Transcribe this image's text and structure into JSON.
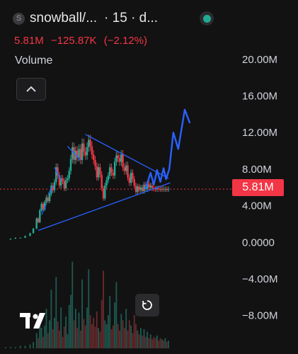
{
  "header": {
    "symbol_icon": "S",
    "symbol": "snowball/...",
    "interval": "· 15 · d...",
    "status_color": "#22ab94"
  },
  "legend": {
    "last_value": "5.81M",
    "change": "−125.87K",
    "change_pct": "(−2.12%)",
    "change_color": "#f23645"
  },
  "volume_label": "Volume",
  "icons": {
    "collapse": "chevron-up-icon",
    "reset": "reset-icon",
    "logo": "tradingview-logo-icon",
    "status": "status-dot-icon"
  },
  "chart_data": {
    "type": "line",
    "title": "",
    "xlabel": "",
    "ylabel": "",
    "ylim": [
      -9500000,
      22000000
    ],
    "y_ticks": [
      20000000,
      16000000,
      12000000,
      8000000,
      4000000,
      0,
      -4000000,
      -8000000
    ],
    "y_tick_labels": [
      "20.00M",
      "16.00M",
      "12.00M",
      "8.00M",
      "4.00M",
      "0.0000",
      "−4.00M",
      "−8.00M"
    ],
    "last_price": 5810000,
    "last_price_label": "5.81M",
    "colors": {
      "bull": "#22ab94",
      "bear": "#f23645",
      "drawing": "#2962ff",
      "price_line": "#f23645",
      "volume_bull": "#1f5a50",
      "volume_bear": "#6b2a2d"
    },
    "series": [
      {
        "x": [
          0,
          3,
          6,
          9,
          12,
          15,
          17,
          19,
          20,
          21,
          22,
          23,
          24,
          25,
          26,
          27,
          28,
          29,
          30,
          31,
          32,
          33,
          34,
          35,
          36,
          37,
          38,
          39,
          40,
          41,
          42,
          43,
          44,
          45,
          46,
          47,
          48,
          49,
          50,
          51,
          52,
          53,
          54,
          55,
          56,
          57,
          58,
          59,
          60,
          61,
          62,
          63,
          64,
          65,
          66,
          67,
          68,
          69,
          70,
          71,
          72,
          73,
          74,
          75,
          76,
          77,
          78,
          79,
          80,
          81,
          82,
          83,
          84,
          85,
          86,
          87,
          88,
          89,
          90,
          91,
          92,
          93,
          94,
          95,
          96,
          97,
          98,
          99,
          100
        ],
        "values": [
          0.3,
          0.4,
          0.5,
          0.5,
          0.7,
          1.0,
          1.5,
          2.6,
          2.2,
          3.5,
          4.2,
          3.6,
          4.4,
          4.9,
          4.5,
          5.3,
          6.2,
          5.7,
          6.6,
          8.2,
          7.3,
          6.2,
          7.0,
          6.7,
          5.9,
          6.8,
          7.0,
          7.8,
          9.1,
          10.4,
          9.0,
          10.0,
          9.3,
          10.2,
          9.0,
          10.8,
          9.9,
          9.5,
          10.4,
          11.2,
          10.5,
          9.6,
          9.0,
          8.3,
          7.1,
          8.2,
          7.4,
          5.9,
          4.8,
          6.2,
          6.8,
          7.3,
          8.2,
          7.6,
          7.3,
          8.8,
          9.5,
          9.2,
          8.8,
          9.6,
          8.2,
          7.8,
          8.4,
          7.1,
          6.5,
          7.6,
          6.9,
          6.2,
          5.5,
          6.1,
          5.7,
          6.0,
          5.6,
          6.3,
          5.8,
          6.4,
          6.0,
          6.2,
          5.9,
          5.85,
          5.8,
          5.9,
          5.82,
          5.81,
          5.85,
          5.79,
          5.82,
          5.8,
          5.81
        ],
        "volume_profile": [
          0.1,
          0.1,
          0.1,
          0.2,
          0.2,
          0.3,
          0.5,
          1.2,
          0.8,
          2.4,
          1.6,
          0.9,
          1.8,
          3.1,
          1.2,
          2.2,
          4.6,
          1.5,
          2.4,
          5.6,
          2.1,
          1.4,
          3.2,
          0.9,
          1.7,
          2.5,
          1.1,
          3.4,
          4.2,
          6.8,
          2.2,
          3.1,
          1.6,
          2.8,
          1.4,
          5.4,
          2.3,
          1.8,
          3.2,
          6.2,
          2.6,
          1.9,
          2.4,
          1.7,
          2.9,
          1.6,
          1.3,
          3.8,
          6.1,
          2.2,
          1.9,
          2.6,
          4.1,
          1.5,
          1.8,
          3.6,
          5.2,
          1.9,
          1.4,
          2.7,
          2.2,
          1.6,
          3.1,
          1.4,
          2.2,
          1.8,
          1.2,
          2.6,
          1.9,
          1.4,
          1.1,
          1.6,
          1.0,
          1.5,
          0.9,
          1.3,
          0.8,
          1.1,
          0.7,
          0.9,
          0.8,
          1.0,
          0.6,
          0.8,
          0.7,
          0.6,
          0.8,
          0.5,
          0.6
        ]
      }
    ]
  }
}
